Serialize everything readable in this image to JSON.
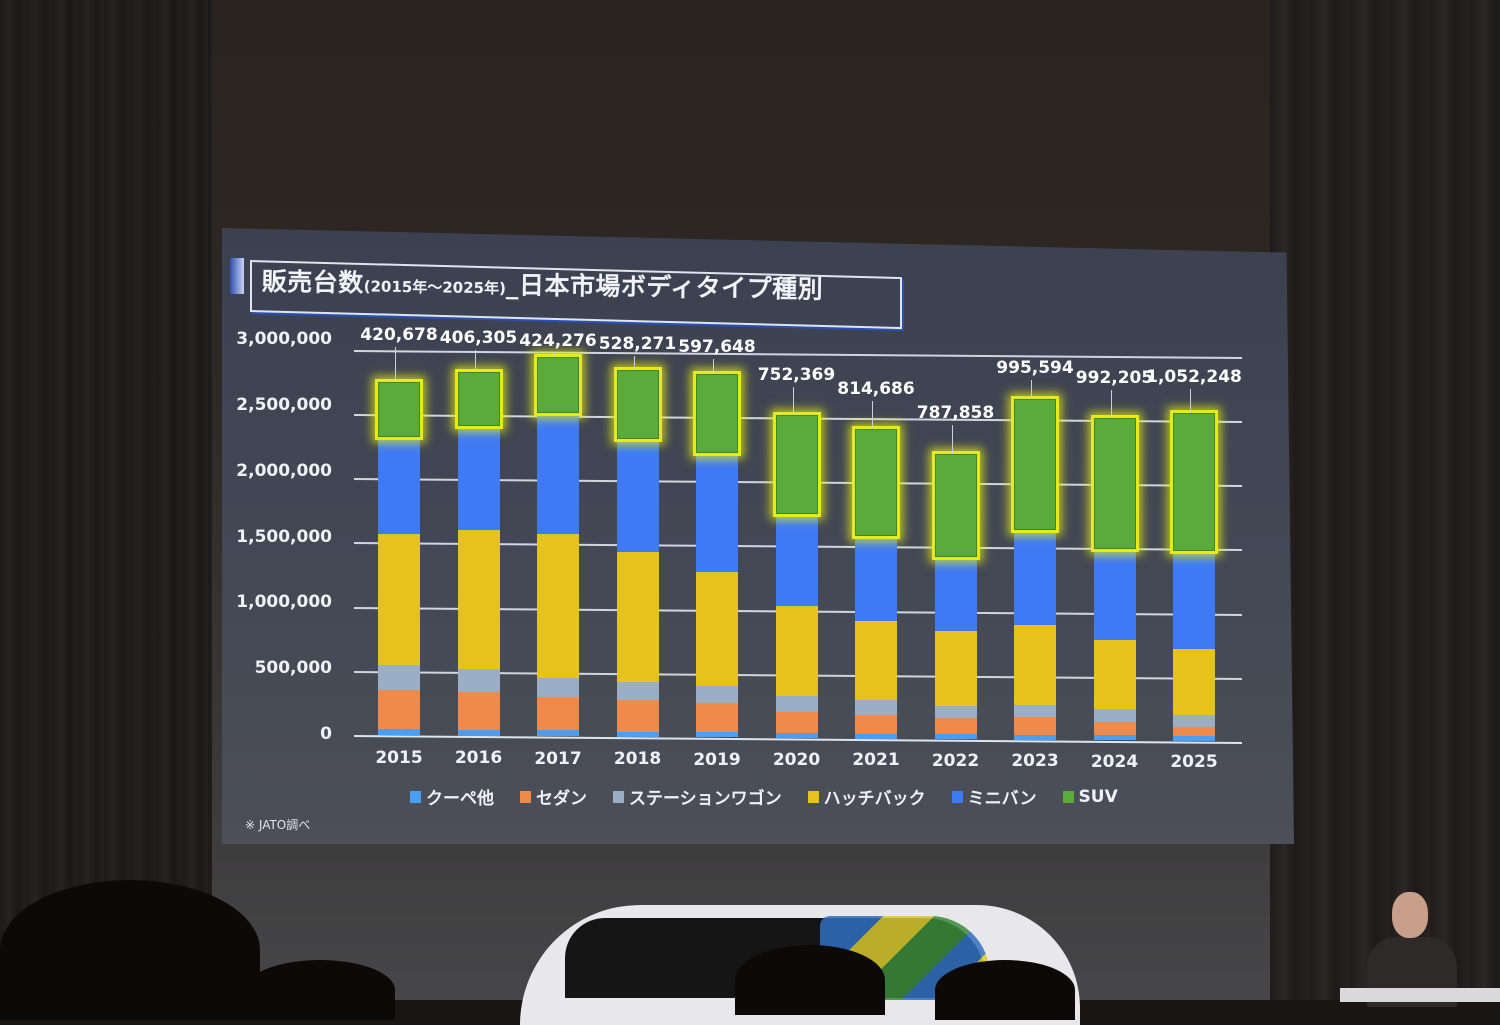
{
  "slide": {
    "title_main": "販売台数",
    "title_period": "(2015年～2025年)",
    "title_rest": "_日本市場ボディタイプ種別",
    "source_note": "※ JATO調べ"
  },
  "legend": [
    {
      "label": "クーペ他",
      "color": "#4a9ff5"
    },
    {
      "label": "セダン",
      "color": "#f08a4b"
    },
    {
      "label": "ステーションワゴン",
      "color": "#9aaec6"
    },
    {
      "label": "ハッチバック",
      "color": "#e6c21c"
    },
    {
      "label": "ミニバン",
      "color": "#3f7af5"
    },
    {
      "label": "SUV",
      "color": "#5aab3c"
    }
  ],
  "chart_data": {
    "type": "bar",
    "stacked": true,
    "title": "販売台数(2015年～2025年)_日本市場ボディタイプ種別",
    "xlabel": "",
    "ylabel": "",
    "ylim": [
      0,
      3000000
    ],
    "yticks": [
      "0",
      "500,000",
      "1,000,000",
      "1,500,000",
      "2,000,000",
      "2,500,000",
      "3,000,000"
    ],
    "grid": true,
    "legend_position": "bottom",
    "categories": [
      "2015",
      "2016",
      "2017",
      "2018",
      "2019",
      "2020",
      "2021",
      "2022",
      "2023",
      "2024",
      "2025"
    ],
    "series": [
      {
        "name": "クーペ他",
        "color": "#4a9ff5",
        "values": [
          45000,
          45000,
          45000,
          40000,
          40000,
          35000,
          35000,
          40000,
          40000,
          40000,
          35000
        ]
      },
      {
        "name": "セダン",
        "color": "#f08a4b",
        "values": [
          300000,
          285000,
          250000,
          240000,
          220000,
          160000,
          145000,
          120000,
          130000,
          100000,
          75000
        ]
      },
      {
        "name": "ステーションワゴン",
        "color": "#9aaec6",
        "values": [
          190000,
          175000,
          150000,
          135000,
          130000,
          125000,
          110000,
          90000,
          95000,
          95000,
          90000
        ]
      },
      {
        "name": "ハッチバック",
        "color": "#e6c21c",
        "values": [
          990000,
          1060000,
          1090000,
          985000,
          870000,
          680000,
          600000,
          570000,
          610000,
          530000,
          500000
        ]
      },
      {
        "name": "ミニバン",
        "color": "#3f7af5",
        "values": [
          735000,
          790000,
          920000,
          860000,
          900000,
          700000,
          650000,
          560000,
          720000,
          690000,
          740000
        ]
      },
      {
        "name": "SUV",
        "color": "#5aab3c",
        "values": [
          420678,
          406305,
          424276,
          528271,
          597648,
          752369,
          814686,
          787858,
          995594,
          992205,
          1052248
        ]
      }
    ],
    "annotations": {
      "suv_labels": [
        "420,678",
        "406,305",
        "424,276",
        "528,271",
        "597,648",
        "752,369",
        "814,686",
        "787,858",
        "995,594",
        "992,205",
        "1,052,248"
      ],
      "suv_highlight_color": "#e7ea1a"
    },
    "source": "※ JATO調べ"
  }
}
